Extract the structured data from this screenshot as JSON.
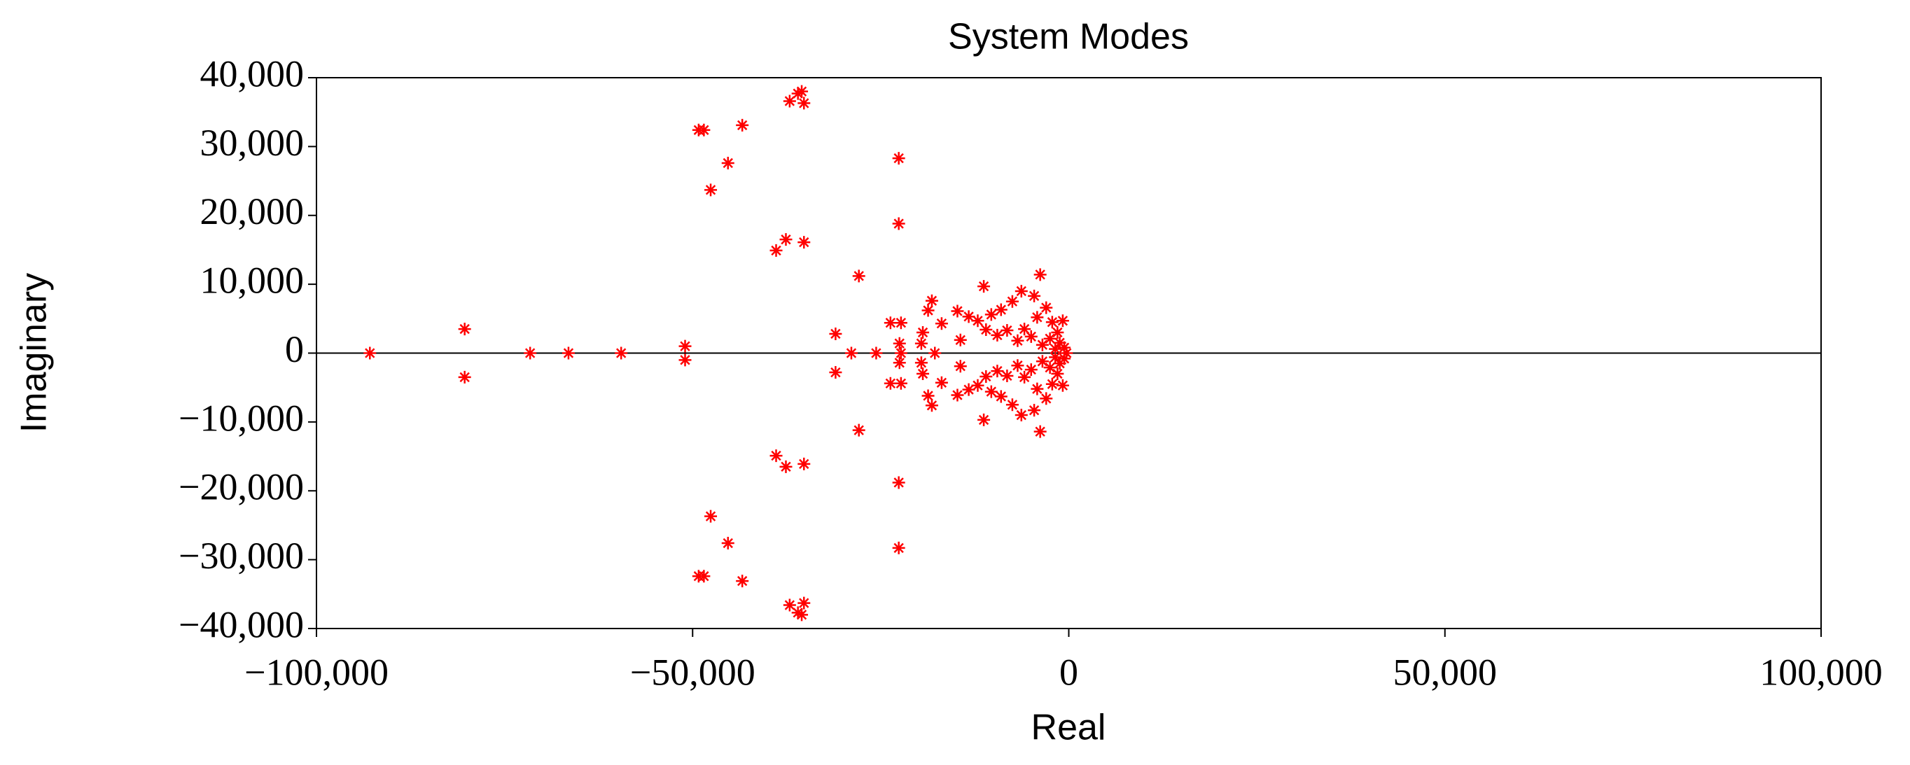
{
  "chart_data": {
    "type": "scatter",
    "title": "System Modes",
    "xlabel": "Real",
    "ylabel": "Imaginary",
    "color": "#ff0000",
    "marker": "asterisk",
    "xlim": [
      -100000,
      100000
    ],
    "xticks": [
      {
        "value": -100000,
        "label": "−100,000"
      },
      {
        "value": -50000,
        "label": "−50,000"
      },
      0,
      {
        "value": 50000,
        "label": "50,000"
      },
      {
        "value": 100000,
        "label": "100,000"
      }
    ],
    "ylim": [
      -40000,
      40000
    ],
    "yticks": [
      {
        "value": 40000,
        "label": "40,000"
      },
      {
        "value": 30000,
        "label": "30,000"
      },
      {
        "value": 20000,
        "label": "20,000"
      },
      {
        "value": 10000,
        "label": "10,000"
      },
      0,
      {
        "value": -10000,
        "label": "−10,000"
      },
      {
        "value": -20000,
        "label": "−20,000"
      },
      {
        "value": -30000,
        "label": "−30,000"
      },
      {
        "value": -40000,
        "label": "−40,000"
      }
    ],
    "x": [
      -92900,
      -71600,
      -66500,
      -59500,
      -28900,
      -25600,
      -22300,
      -17800,
      -300,
      -80300,
      -51000,
      -49200,
      -48500,
      -45300,
      -47600,
      -43400,
      -36000,
      -37100,
      -35200,
      -35500,
      -37600,
      -38900,
      -35200,
      -22600,
      -22600,
      -27900,
      -31000,
      -23700,
      -22300,
      -22500,
      -19400,
      -18200,
      -18700,
      -16900,
      -19600,
      -14400,
      -14800,
      -13300,
      -11300,
      -12100,
      -10300,
      -9000,
      -7500,
      -6300,
      -4600,
      -3800,
      -5900,
      -8200,
      -4200,
      -3000,
      -2200,
      -1500,
      -800,
      -2500,
      -1200,
      -600,
      -1800,
      -3500,
      -5000,
      -6800,
      -9500,
      -11000,
      -80300,
      -51000,
      -49200,
      -48500,
      -45300,
      -47600,
      -43400,
      -36000,
      -37100,
      -35200,
      -35500,
      -37600,
      -38900,
      -35200,
      -22600,
      -22600,
      -27900,
      -31000,
      -23700,
      -22300,
      -22500,
      -19400,
      -18200,
      -18700,
      -16900,
      -19600,
      -14400,
      -14800,
      -13300,
      -11300,
      -12100,
      -10300,
      -9000,
      -7500,
      -6300,
      -4600,
      -3800,
      -5900,
      -8200,
      -4200,
      -3000,
      -2200,
      -1500,
      -800,
      -2500,
      -1200,
      -600,
      -1800,
      -3500,
      -5000,
      -6800,
      -9500,
      -11000
    ],
    "values": [
      0,
      0,
      0,
      0,
      0,
      0,
      0,
      0,
      0,
      3500,
      1000,
      32400,
      32400,
      27600,
      23700,
      33100,
      37700,
      36600,
      36300,
      38000,
      16500,
      14900,
      16100,
      28300,
      18800,
      11200,
      2800,
      4400,
      4400,
      1400,
      3000,
      7600,
      6200,
      4300,
      1400,
      1900,
      6100,
      5300,
      9700,
      4700,
      5600,
      6300,
      7500,
      9000,
      8300,
      11400,
      3500,
      3300,
      5200,
      6600,
      4500,
      3000,
      4700,
      2100,
      1500,
      800,
      600,
      1200,
      2400,
      1800,
      2600,
      3400,
      -3500,
      -1000,
      -32400,
      -32400,
      -27600,
      -23700,
      -33100,
      -37700,
      -36600,
      -36300,
      -38000,
      -16500,
      -14900,
      -16100,
      -28300,
      -18800,
      -11200,
      -2800,
      -4400,
      -4400,
      -1400,
      -3000,
      -7600,
      -6200,
      -4300,
      -1400,
      -1900,
      -6100,
      -5300,
      -9700,
      -4700,
      -5600,
      -6300,
      -7500,
      -9000,
      -8300,
      -11400,
      -3500,
      -3300,
      -5200,
      -6600,
      -4500,
      -3000,
      -4700,
      -2100,
      -1500,
      -800,
      -600,
      -1200,
      -2400,
      -1800,
      -2600,
      -3400
    ]
  }
}
